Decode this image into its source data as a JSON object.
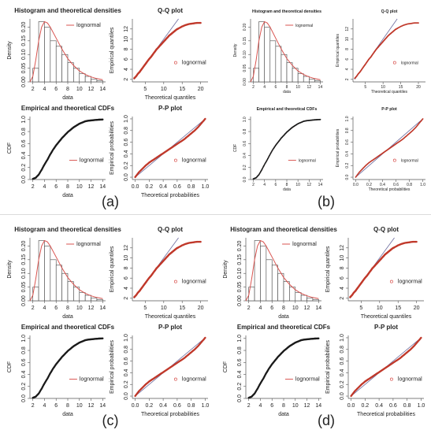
{
  "colors": {
    "density_line": "#d9534f",
    "points": "#1a1a1a",
    "reference_line": "#d9534f",
    "qq_points": "#c0392b",
    "pp_points": "#c0392b",
    "diag_line": "#6b6b9e",
    "bars_fill": "#ffffff",
    "bars_stroke": "#444444",
    "panel_bg": "#ffffff",
    "separator": "#dcdcdc"
  },
  "panels": [
    {
      "label": "(a)",
      "variant": "bold"
    },
    {
      "label": "(b)",
      "variant": "light"
    },
    {
      "label": "(c)",
      "variant": "bold"
    },
    {
      "label": "(d)",
      "variant": "bold"
    }
  ],
  "chart_data": [
    {
      "type": "bar",
      "title": "Histogram and theoretical densities",
      "xlabel": "data",
      "ylabel": "Density",
      "legend": [
        "lognormal"
      ],
      "legend_position": "top-right",
      "categories": [
        "2-3",
        "3-4",
        "4-5",
        "5-6",
        "6-7",
        "7-8",
        "8-9",
        "9-10",
        "10-11",
        "11-12",
        "12-13",
        "13-14"
      ],
      "values": [
        0.05,
        0.22,
        0.2,
        0.15,
        0.13,
        0.1,
        0.07,
        0.05,
        0.03,
        0.02,
        0.01,
        0.005
      ],
      "density_curve": {
        "x": [
          1.5,
          2,
          2.5,
          3,
          3.5,
          4,
          4.5,
          5,
          6,
          7,
          8,
          9,
          10,
          11,
          12,
          13,
          14
        ],
        "y": [
          0.0,
          0.02,
          0.08,
          0.15,
          0.2,
          0.22,
          0.215,
          0.2,
          0.16,
          0.12,
          0.085,
          0.06,
          0.04,
          0.027,
          0.018,
          0.012,
          0.008
        ]
      },
      "xticks": [
        "2",
        "4",
        "6",
        "8",
        "10",
        "12",
        "14"
      ],
      "yticks": [
        "0.00",
        "0.05",
        "0.10",
        "0.15",
        "0.20"
      ],
      "xlim": [
        1.5,
        14.5
      ],
      "ylim": [
        0,
        0.23
      ]
    },
    {
      "type": "scatter",
      "title": "Q-Q plot",
      "xlabel": "Theoretical quantiles",
      "ylabel": "Empirical quantiles",
      "legend": [
        "lognormal"
      ],
      "legend_position": "bottom-right",
      "x": [
        2.0,
        2.5,
        3.0,
        3.5,
        4.0,
        4.5,
        5.0,
        5.5,
        6.0,
        6.5,
        7.0,
        7.5,
        8.0,
        8.5,
        9.0,
        9.5,
        10.0,
        10.5,
        11.0,
        11.5,
        12.0,
        12.5,
        13.0,
        13.5,
        14.0,
        15.0,
        16.0,
        17.0,
        18.0,
        19.0,
        20.0
      ],
      "y": [
        2.2,
        2.6,
        3.1,
        3.5,
        4.0,
        4.5,
        5.0,
        5.5,
        6.0,
        6.4,
        6.9,
        7.4,
        7.9,
        8.3,
        8.7,
        9.1,
        9.5,
        9.9,
        10.3,
        10.7,
        11.0,
        11.3,
        11.6,
        11.9,
        12.1,
        12.5,
        12.8,
        13.0,
        13.1,
        13.2,
        13.2
      ],
      "reference_line": {
        "x": [
          2,
          14
        ],
        "y": [
          2,
          14
        ]
      },
      "xticks": [
        "5",
        "10",
        "15",
        "20"
      ],
      "yticks": [
        "2",
        "4",
        "6",
        "8",
        "10",
        "12"
      ],
      "xlim": [
        1.5,
        22
      ],
      "ylim": [
        1.5,
        14
      ]
    },
    {
      "type": "scatter",
      "title": "Empirical and theoretical CDFs",
      "xlabel": "data",
      "ylabel": "CDF",
      "legend": [
        "lognormal"
      ],
      "legend_position": "bottom-right",
      "x": [
        2.0,
        2.5,
        3.0,
        3.5,
        4.0,
        4.5,
        5.0,
        5.5,
        6.0,
        6.5,
        7.0,
        7.5,
        8.0,
        8.5,
        9.0,
        9.5,
        10.0,
        10.5,
        11.0,
        11.5,
        12.0,
        12.5,
        13.0,
        13.5,
        14.0
      ],
      "y": [
        0.01,
        0.03,
        0.08,
        0.16,
        0.25,
        0.33,
        0.42,
        0.5,
        0.57,
        0.63,
        0.69,
        0.74,
        0.79,
        0.83,
        0.87,
        0.9,
        0.93,
        0.95,
        0.97,
        0.98,
        0.985,
        0.99,
        0.995,
        0.998,
        1.0
      ],
      "xticks": [
        "2",
        "4",
        "6",
        "8",
        "10",
        "12",
        "14"
      ],
      "yticks": [
        "0.0",
        "0.2",
        "0.4",
        "0.6",
        "0.8",
        "1.0"
      ],
      "xlim": [
        1.5,
        14.5
      ],
      "ylim": [
        0,
        1.05
      ]
    },
    {
      "type": "scatter",
      "title": "P-P plot",
      "xlabel": "Theoretical probabilities",
      "ylabel": "Empirical probabilities",
      "legend": [
        "lognormal"
      ],
      "legend_position": "bottom-right",
      "x": [
        0.0,
        0.05,
        0.1,
        0.15,
        0.2,
        0.25,
        0.3,
        0.35,
        0.4,
        0.45,
        0.5,
        0.55,
        0.6,
        0.65,
        0.7,
        0.75,
        0.8,
        0.85,
        0.9,
        0.95,
        1.0
      ],
      "y": [
        0.0,
        0.08,
        0.14,
        0.2,
        0.25,
        0.29,
        0.33,
        0.37,
        0.41,
        0.45,
        0.49,
        0.53,
        0.57,
        0.61,
        0.65,
        0.7,
        0.75,
        0.8,
        0.86,
        0.93,
        1.0
      ],
      "reference_line": {
        "x": [
          0,
          1
        ],
        "y": [
          0,
          1
        ]
      },
      "xticks": [
        "0.0",
        "0.2",
        "0.4",
        "0.6",
        "0.8",
        "1.0"
      ],
      "yticks": [
        "0.0",
        "0.2",
        "0.4",
        "0.6",
        "0.8",
        "1.0"
      ],
      "xlim": [
        -0.04,
        1.04
      ],
      "ylim": [
        -0.04,
        1.04
      ]
    }
  ]
}
